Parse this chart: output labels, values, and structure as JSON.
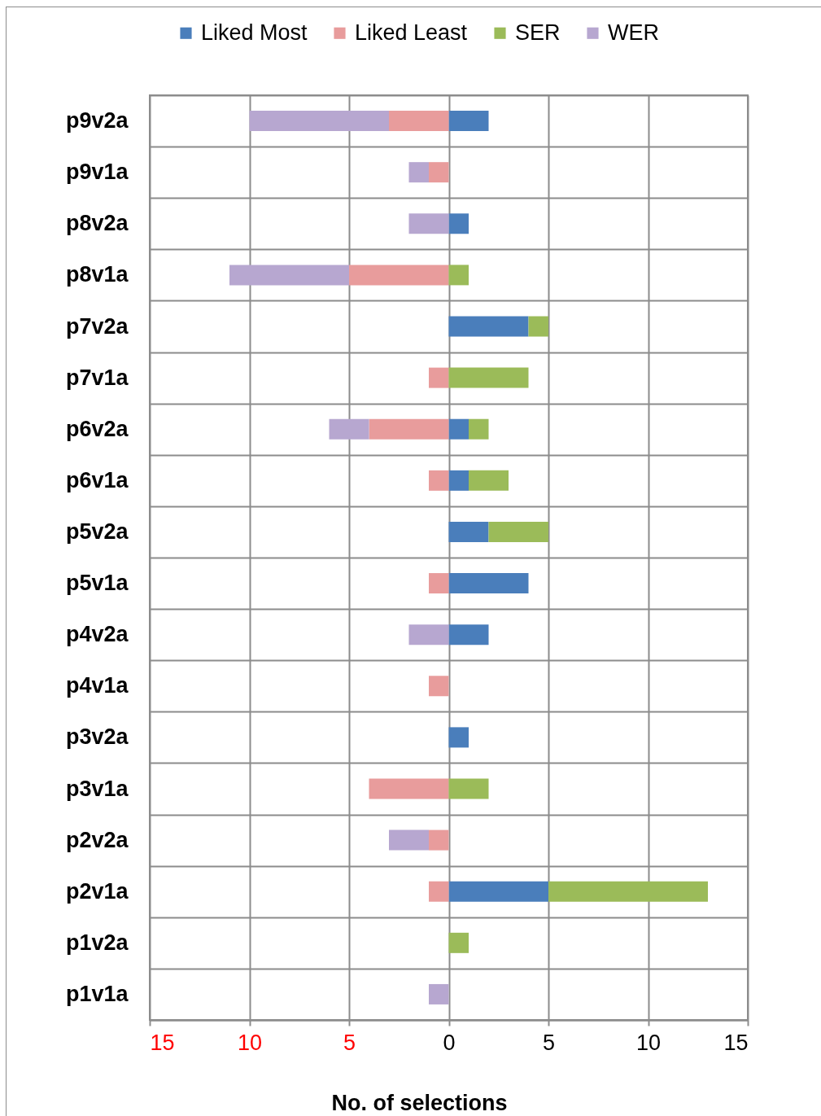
{
  "chart_data": {
    "type": "bar",
    "orientation": "horizontal",
    "stacked": true,
    "xlabel": "No. of selections",
    "categories": [
      "p9v2a",
      "p9v1a",
      "p8v2a",
      "p8v1a",
      "p7v2a",
      "p7v1a",
      "p6v2a",
      "p6v1a",
      "p5v2a",
      "p5v1a",
      "p4v2a",
      "p4v1a",
      "p3v2a",
      "p3v1a",
      "p2v2a",
      "p2v1a",
      "p1v2a",
      "p1v1a"
    ],
    "series": [
      {
        "name": "Liked Most",
        "color": "#4a7ebb",
        "values": [
          2,
          0,
          1,
          0,
          4,
          0,
          1,
          1,
          2,
          4,
          2,
          0,
          1,
          0,
          0,
          5,
          0,
          0
        ]
      },
      {
        "name": "Liked Least",
        "color": "#e89c9c",
        "values": [
          -3,
          -1,
          0,
          -5,
          0,
          -1,
          -4,
          -1,
          0,
          -1,
          0,
          -1,
          0,
          -4,
          -1,
          -1,
          0,
          0
        ]
      },
      {
        "name": "SER",
        "color": "#9bbb59",
        "values": [
          0,
          0,
          0,
          1,
          1,
          4,
          1,
          2,
          3,
          0,
          0,
          0,
          0,
          2,
          0,
          8,
          1,
          0
        ]
      },
      {
        "name": "WER",
        "color": "#b7a7d0",
        "values": [
          -7,
          -1,
          -2,
          -6,
          0,
          0,
          -2,
          0,
          0,
          0,
          -2,
          0,
          0,
          0,
          -2,
          0,
          0,
          -1
        ]
      }
    ],
    "xlim": [
      -15,
      15
    ],
    "xticks": [
      {
        "value": -15,
        "label": "15"
      },
      {
        "value": -10,
        "label": "10"
      },
      {
        "value": -5,
        "label": "5"
      },
      0,
      5,
      10,
      15
    ],
    "grid": true,
    "legend": "top"
  }
}
